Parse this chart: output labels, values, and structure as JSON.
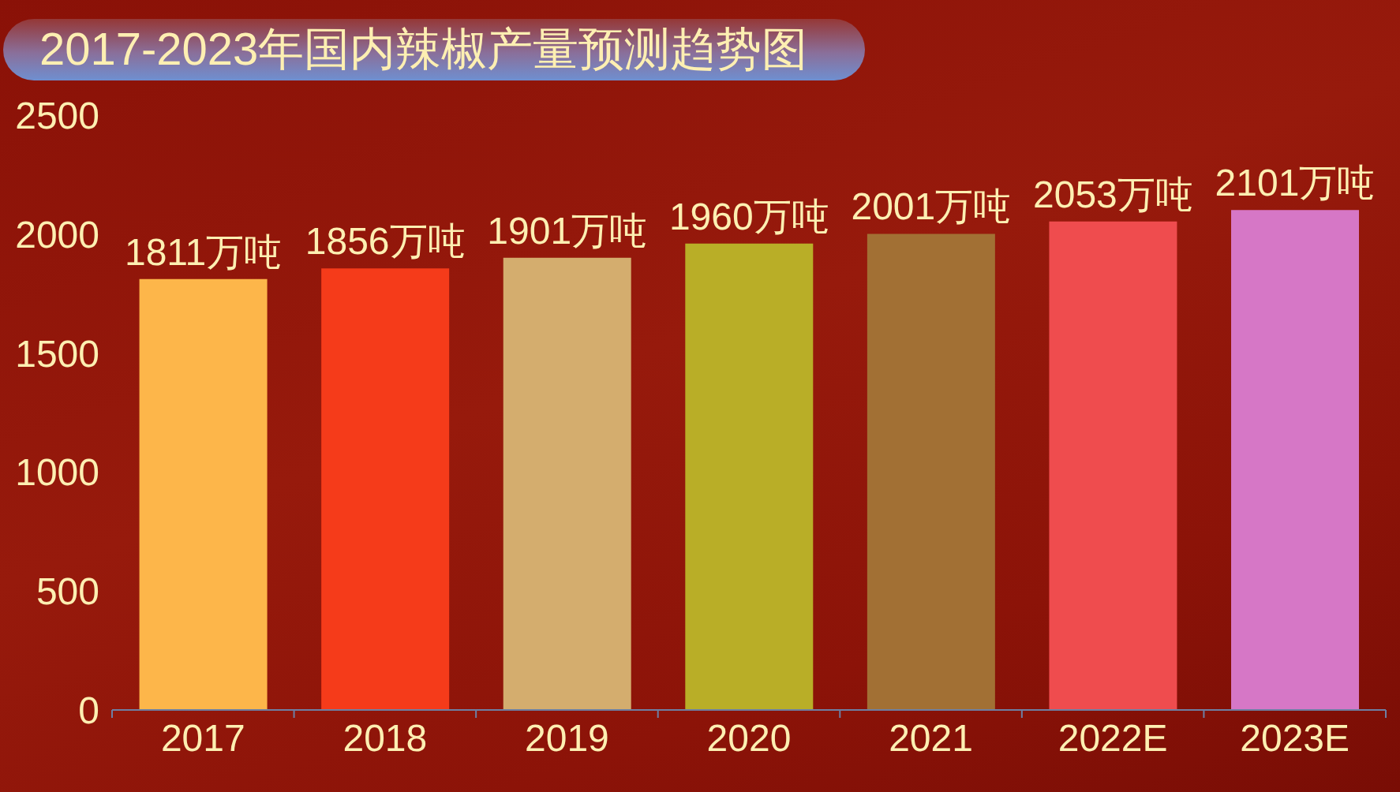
{
  "chart_data": {
    "type": "bar",
    "title": "2017-2023年国内辣椒产量预测趋势图",
    "categories": [
      "2017",
      "2018",
      "2019",
      "2020",
      "2021",
      "2022E",
      "2023E"
    ],
    "values": [
      1811,
      1856,
      1901,
      1960,
      2001,
      2053,
      2101
    ],
    "colors": [
      "#fdb64a",
      "#f53b1a",
      "#d4ad6e",
      "#b9ae27",
      "#a27034",
      "#ef4c4e",
      "#d677c6"
    ],
    "value_labels": [
      "1811万吨",
      "1856万吨",
      "1901万吨",
      "1960万吨",
      "2001万吨",
      "2053万吨",
      "2101万吨"
    ],
    "ylim": [
      0,
      2500
    ],
    "yticks": [
      0,
      500,
      1000,
      1500,
      2000,
      2500
    ]
  }
}
